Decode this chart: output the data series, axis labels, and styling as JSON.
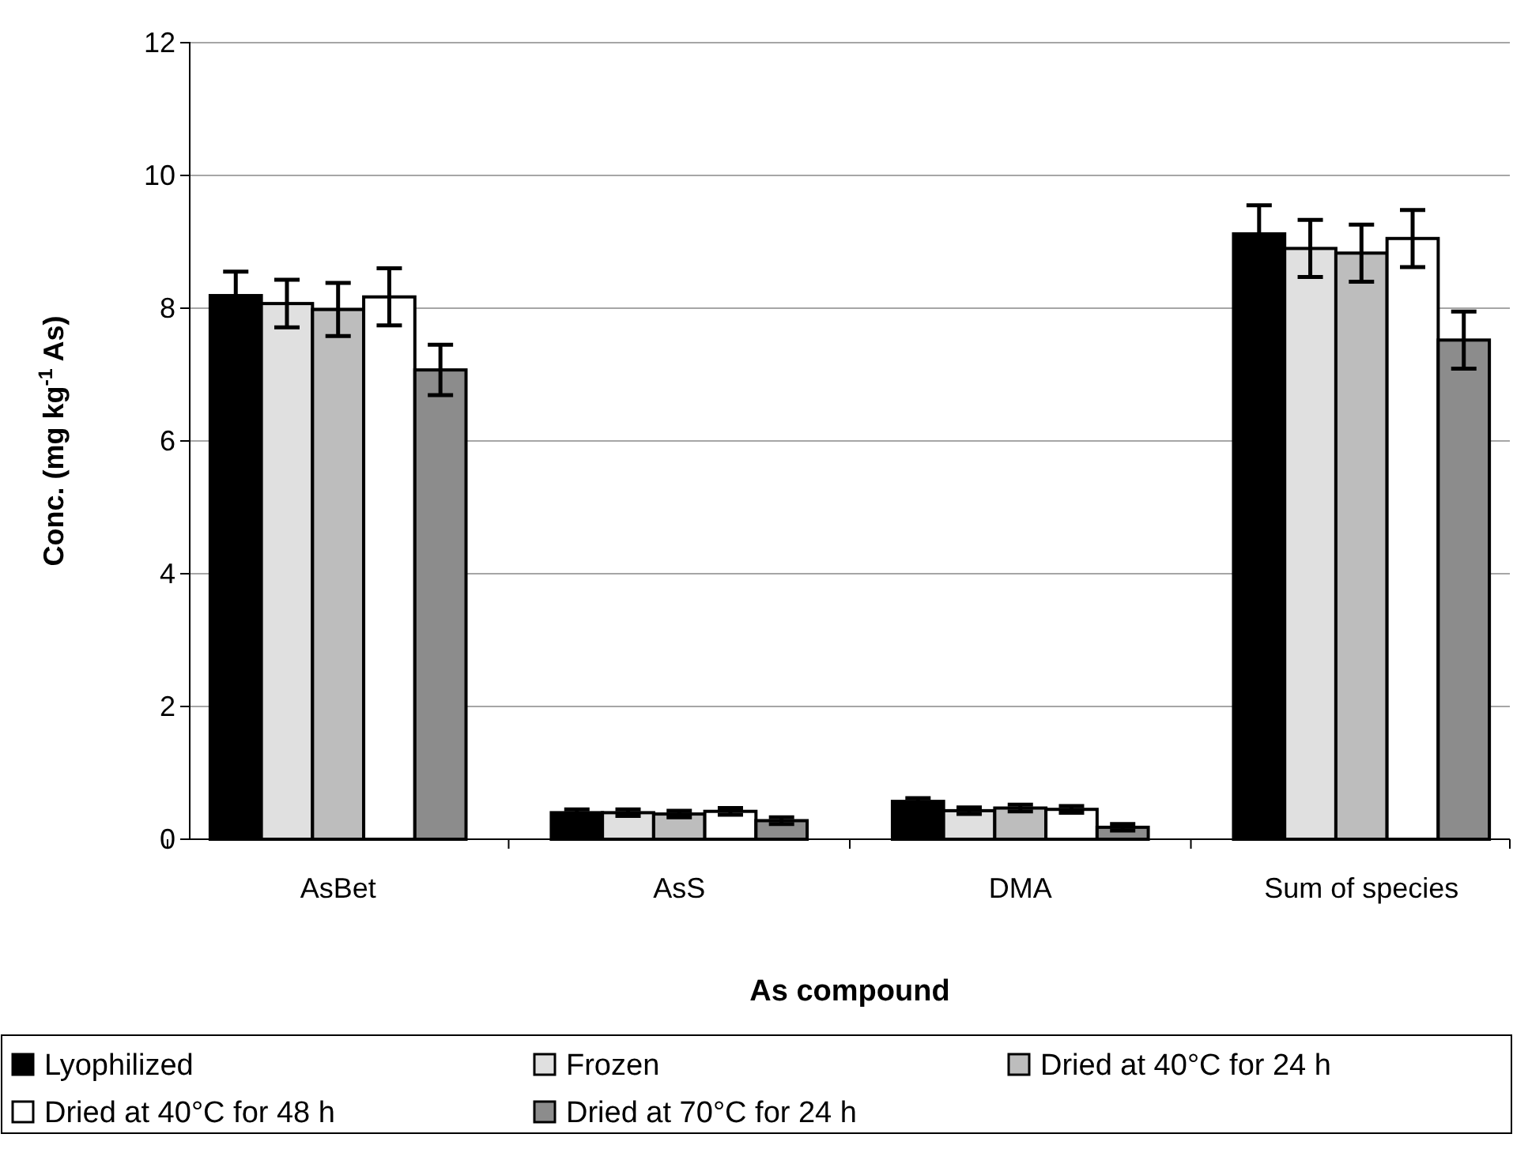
{
  "chart_data": {
    "type": "bar",
    "xlabel": "As compound",
    "ylabel": "Conc. (mg kg$^{-1}$ As)",
    "categories": [
      "AsBet",
      "AsS",
      "DMA",
      "Sum of species"
    ],
    "series": [
      {
        "name": "Lyophilized",
        "color": "#000000",
        "values": [
          8.19,
          0.4,
          0.57,
          9.12
        ],
        "errors": [
          0.36,
          0.05,
          0.05,
          0.43
        ]
      },
      {
        "name": "Frozen",
        "color": "#e0e0e0",
        "values": [
          8.07,
          0.4,
          0.43,
          8.9
        ],
        "errors": [
          0.36,
          0.05,
          0.05,
          0.43
        ]
      },
      {
        "name": "Dried at 40°C for 24 h",
        "color": "#bdbdbd",
        "values": [
          7.98,
          0.38,
          0.47,
          8.83
        ],
        "errors": [
          0.4,
          0.05,
          0.05,
          0.43
        ]
      },
      {
        "name": "Dried at 40°C for 48 h",
        "color": "#ffffff",
        "values": [
          8.17,
          0.42,
          0.45,
          9.05
        ],
        "errors": [
          0.43,
          0.05,
          0.05,
          0.43
        ]
      },
      {
        "name": "Dried at 70°C for 24 h",
        "color": "#8c8c8c",
        "values": [
          7.07,
          0.28,
          0.18,
          7.52
        ],
        "errors": [
          0.38,
          0.05,
          0.05,
          0.43
        ]
      }
    ],
    "ylim": [
      0,
      12
    ],
    "yticks": [
      0,
      2,
      4,
      6,
      8,
      10,
      12
    ],
    "grid": "y",
    "legend": "bottom"
  }
}
